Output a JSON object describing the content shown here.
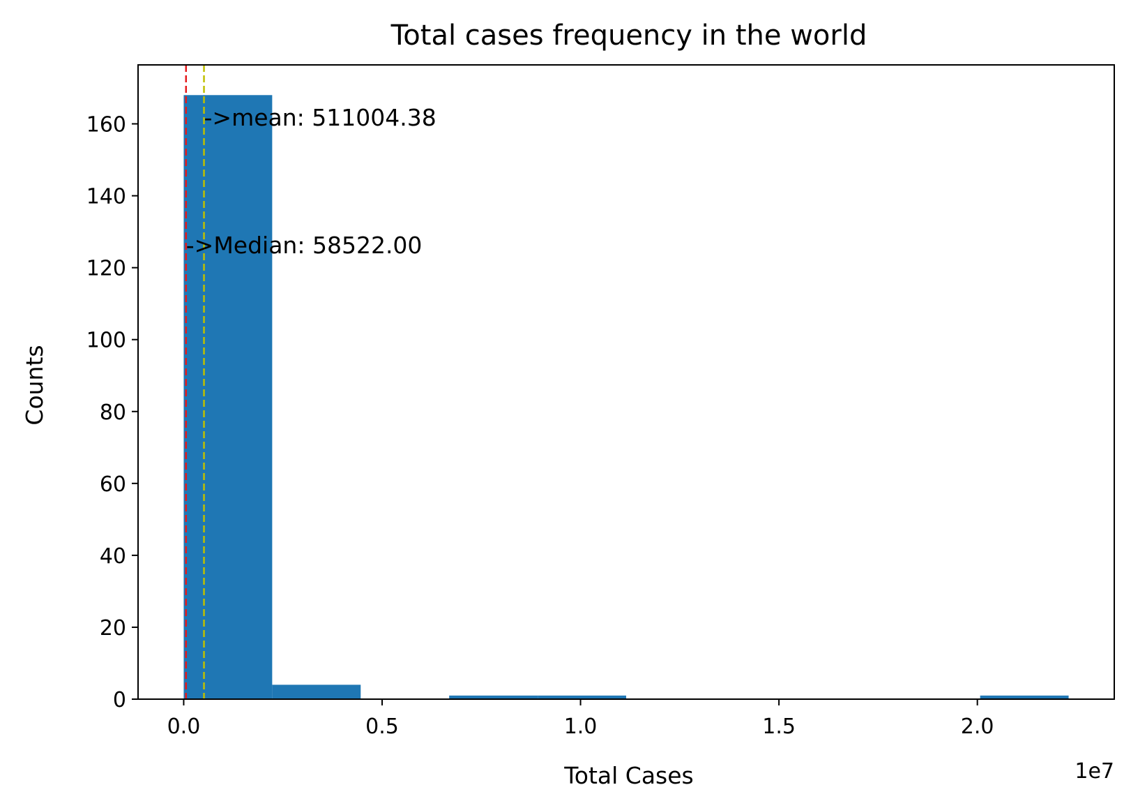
{
  "chart_data": {
    "type": "bar",
    "title": "Total cases frequency in the world",
    "xlabel": "Total Cases",
    "ylabel": "Counts",
    "x_offset_label": "1e7",
    "bar_color": "#1f77b4",
    "bins": [
      {
        "start": 0,
        "end": 2230000,
        "count": 168
      },
      {
        "start": 2230000,
        "end": 4460000,
        "count": 4
      },
      {
        "start": 4460000,
        "end": 6690000,
        "count": 0
      },
      {
        "start": 6690000,
        "end": 8920000,
        "count": 1
      },
      {
        "start": 8920000,
        "end": 11150000,
        "count": 1
      },
      {
        "start": 11150000,
        "end": 13380000,
        "count": 0
      },
      {
        "start": 13380000,
        "end": 15610000,
        "count": 0
      },
      {
        "start": 15610000,
        "end": 17840000,
        "count": 0
      },
      {
        "start": 17840000,
        "end": 20070000,
        "count": 0
      },
      {
        "start": 20070000,
        "end": 22300000,
        "count": 1
      }
    ],
    "xlim": [
      -1150000,
      23450000
    ],
    "ylim": [
      0,
      176.4
    ],
    "x_ticks": [
      {
        "value": 0,
        "label": "0.0"
      },
      {
        "value": 5000000,
        "label": "0.5"
      },
      {
        "value": 10000000,
        "label": "1.0"
      },
      {
        "value": 15000000,
        "label": "1.5"
      },
      {
        "value": 20000000,
        "label": "2.0"
      }
    ],
    "y_ticks": [
      {
        "value": 0,
        "label": "0"
      },
      {
        "value": 20,
        "label": "20"
      },
      {
        "value": 40,
        "label": "40"
      },
      {
        "value": 60,
        "label": "60"
      },
      {
        "value": 80,
        "label": "80"
      },
      {
        "value": 100,
        "label": "100"
      },
      {
        "value": 120,
        "label": "120"
      },
      {
        "value": 140,
        "label": "140"
      },
      {
        "value": 160,
        "label": "160"
      }
    ],
    "reference_lines": [
      {
        "name": "median",
        "value": 58522.0,
        "color": "#e41a1c",
        "label": "->Median: 58522.00",
        "label_y": 124
      },
      {
        "name": "mean",
        "value": 511004.38,
        "color": "#bfbf00",
        "label": "->mean: 511004.38",
        "label_y": 159.5
      }
    ],
    "grid": false,
    "legend": "none"
  }
}
